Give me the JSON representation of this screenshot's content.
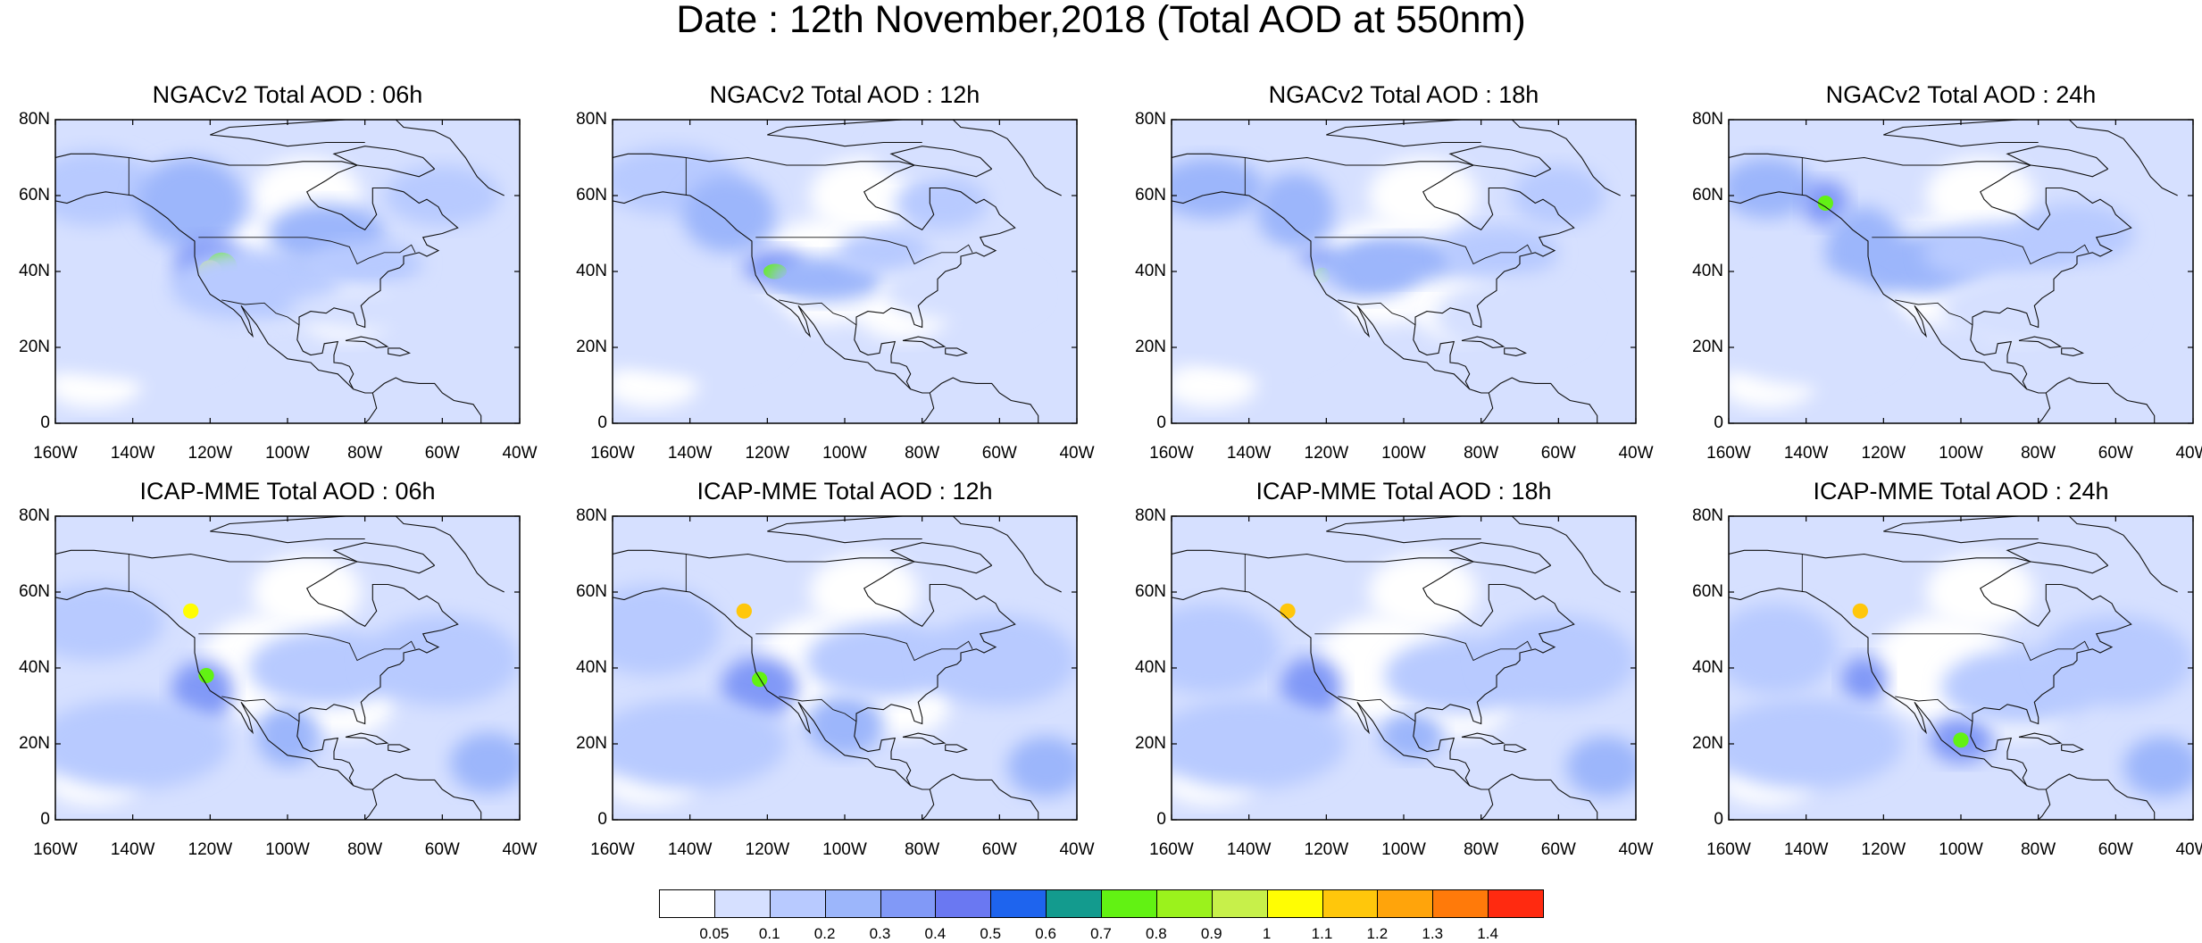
{
  "title": "Date : 12th November,2018 (Total AOD at 550nm)",
  "lat_ticks": [
    "80N",
    "60N",
    "40N",
    "20N",
    "0"
  ],
  "lon_ticks": [
    "160W",
    "140W",
    "120W",
    "100W",
    "80W",
    "60W",
    "40W"
  ],
  "panels": [
    {
      "title": "NGACv2 Total AOD : 06h",
      "model": "NGACv2",
      "hour": 6
    },
    {
      "title": "NGACv2 Total AOD : 12h",
      "model": "NGACv2",
      "hour": 12
    },
    {
      "title": "NGACv2 Total AOD : 18h",
      "model": "NGACv2",
      "hour": 18
    },
    {
      "title": "NGACv2 Total AOD : 24h",
      "model": "NGACv2",
      "hour": 24
    },
    {
      "title": "ICAP-MME Total AOD : 06h",
      "model": "ICAP-MME",
      "hour": 6
    },
    {
      "title": "ICAP-MME Total AOD : 12h",
      "model": "ICAP-MME",
      "hour": 12
    },
    {
      "title": "ICAP-MME Total AOD : 18h",
      "model": "ICAP-MME",
      "hour": 18
    },
    {
      "title": "ICAP-MME Total AOD : 24h",
      "model": "ICAP-MME",
      "hour": 24
    }
  ],
  "colorbar": {
    "labels": [
      "0.05",
      "0.1",
      "0.2",
      "0.3",
      "0.4",
      "0.5",
      "0.6",
      "0.7",
      "0.8",
      "0.9",
      "1",
      "1.1",
      "1.2",
      "1.3",
      "1.4"
    ],
    "colors": [
      "#ffffff",
      "#d6e0ff",
      "#b8caff",
      "#9cb6fb",
      "#8199f7",
      "#6a78f2",
      "#1e64ee",
      "#139b8e",
      "#62f213",
      "#9bf21c",
      "#c7f04a",
      "#fffd03",
      "#ffc70b",
      "#ffa40b",
      "#ff7a0a",
      "#ff2a10"
    ]
  }
}
